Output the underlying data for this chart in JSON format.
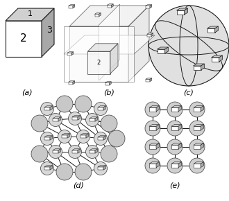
{
  "bg_color": "#ffffff",
  "label_a": "(a)",
  "label_b": "(b)",
  "label_c": "(c)",
  "label_d": "(d)",
  "label_e": "(e)",
  "light_gray": "#d0d0d0",
  "mid_gray": "#a8a8a8",
  "dark_gray": "#505050",
  "node_gray_light": "#c8c8c8",
  "node_gray_dark": "#b0b0b0",
  "line_color": "#1a1a1a",
  "white": "#ffffff"
}
